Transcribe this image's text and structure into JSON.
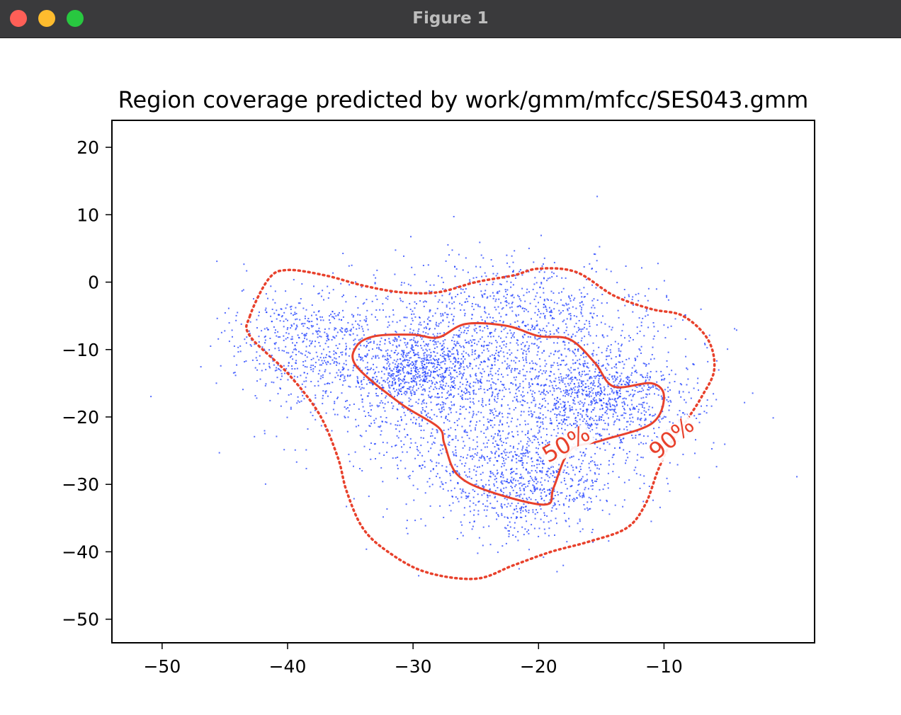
{
  "window": {
    "title": "Figure 1",
    "controls": [
      "close-button",
      "minimize-button",
      "zoom-button"
    ]
  },
  "colors": {
    "titlebar": "#3a3a3c",
    "close": "#ff5f57",
    "minimize": "#febc2e",
    "zoom": "#28c840",
    "points": "#1f3fff",
    "contour": "#e8412c"
  },
  "chart_data": {
    "type": "scatter",
    "title": "Region coverage predicted by work/gmm/mfcc/SES043.gmm",
    "xlabel": "",
    "ylabel": "",
    "xlim": [
      -54,
      2
    ],
    "ylim": [
      -53.5,
      24
    ],
    "xticks": [
      -50,
      -40,
      -30,
      -20,
      -10
    ],
    "yticks": [
      -50,
      -40,
      -30,
      -20,
      -10,
      0,
      10,
      20
    ],
    "xtick_labels": [
      "−50",
      "−40",
      "−30",
      "−20",
      "−10"
    ],
    "ytick_labels": [
      "−50",
      "−40",
      "−30",
      "−20",
      "−10",
      "0",
      "10",
      "20"
    ],
    "grid": false,
    "series": [
      {
        "kind": "scatter",
        "marker": "tiny-square",
        "color": "#1f3fff",
        "approx_count": 5000,
        "clusters": [
          {
            "center": [
              -30,
              -13
            ],
            "spread": [
              2.5,
              3.0
            ],
            "weight": 0.13
          },
          {
            "center": [
              -21,
              -30
            ],
            "spread": [
              3.5,
              4.0
            ],
            "weight": 0.14
          },
          {
            "center": [
              -15,
              -17
            ],
            "spread": [
              3.5,
              3.5
            ],
            "weight": 0.14
          },
          {
            "center": [
              -23,
              -17
            ],
            "spread": [
              7.0,
              8.0
            ],
            "weight": 0.35
          },
          {
            "center": [
              -38,
              -9
            ],
            "spread": [
              3.5,
              4.5
            ],
            "weight": 0.12
          },
          {
            "center": [
              -22,
              -5
            ],
            "spread": [
              5.0,
              4.5
            ],
            "weight": 0.12
          }
        ]
      }
    ],
    "contours": [
      {
        "label": "50%",
        "style": "solid",
        "color": "#e8412c",
        "label_position": [
          -17.5,
          -25
        ],
        "label_rotation": -30,
        "points": [
          [
            -34.5,
            -9.5
          ],
          [
            -33,
            -8
          ],
          [
            -30,
            -7.8
          ],
          [
            -28,
            -8.2
          ],
          [
            -25.8,
            -6.2
          ],
          [
            -22.5,
            -6.5
          ],
          [
            -20,
            -8
          ],
          [
            -17.5,
            -8.5
          ],
          [
            -15.5,
            -12
          ],
          [
            -14,
            -15.5
          ],
          [
            -11,
            -15
          ],
          [
            -10,
            -17
          ],
          [
            -11,
            -21
          ],
          [
            -15,
            -23.5
          ],
          [
            -17.5,
            -25
          ],
          [
            -18.8,
            -30.5
          ],
          [
            -19.5,
            -33
          ],
          [
            -24,
            -31
          ],
          [
            -26.5,
            -28.5
          ],
          [
            -27.5,
            -24
          ],
          [
            -28,
            -21.5
          ],
          [
            -31,
            -18
          ],
          [
            -34.5,
            -12.5
          ]
        ]
      },
      {
        "label": "90%",
        "style": "dotted",
        "color": "#e8412c",
        "label_position": [
          -9,
          -24
        ],
        "label_rotation": -40,
        "points": [
          [
            -43,
            -5
          ],
          [
            -41.5,
            0.5
          ],
          [
            -40,
            1.8
          ],
          [
            -37,
            1
          ],
          [
            -34,
            -0.5
          ],
          [
            -31,
            -1.5
          ],
          [
            -28,
            -1.5
          ],
          [
            -25,
            0
          ],
          [
            -22,
            1
          ],
          [
            -20,
            2
          ],
          [
            -17,
            1.5
          ],
          [
            -14,
            -2
          ],
          [
            -11,
            -4
          ],
          [
            -8.5,
            -5
          ],
          [
            -6.5,
            -8.5
          ],
          [
            -6,
            -13
          ],
          [
            -7,
            -17
          ],
          [
            -8.2,
            -20.5
          ],
          [
            -9.5,
            -24
          ],
          [
            -10.5,
            -28
          ],
          [
            -11.5,
            -33
          ],
          [
            -13,
            -36.5
          ],
          [
            -16,
            -38.5
          ],
          [
            -19,
            -40
          ],
          [
            -22,
            -42
          ],
          [
            -25,
            -44
          ],
          [
            -29,
            -43
          ],
          [
            -32,
            -40
          ],
          [
            -34,
            -36.5
          ],
          [
            -35.3,
            -31
          ],
          [
            -36,
            -26
          ],
          [
            -37.5,
            -19.5
          ],
          [
            -40,
            -13.5
          ],
          [
            -43,
            -8
          ]
        ]
      }
    ]
  }
}
